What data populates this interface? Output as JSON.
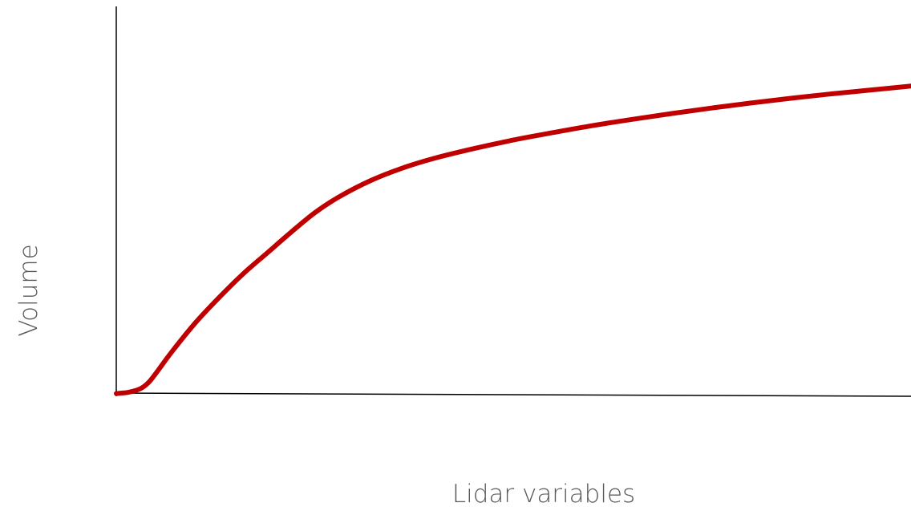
{
  "chart_data": {
    "type": "line",
    "title": "",
    "xlabel": "Lidar variables",
    "ylabel": "Volume",
    "xlim": [
      0,
      100
    ],
    "ylim": [
      0,
      100
    ],
    "grid": false,
    "legend": "none",
    "x_ticks_visible": false,
    "y_ticks_visible": false,
    "series": [
      {
        "color": "#C00000",
        "x": [
          0,
          1.5,
          3,
          4,
          5,
          7,
          10,
          13,
          16,
          19,
          22,
          25,
          28,
          32,
          36,
          40,
          45,
          50,
          55,
          60,
          65,
          70,
          75,
          80,
          85,
          90,
          95,
          100
        ],
        "y": [
          0.3,
          0.6,
          1.5,
          3.0,
          5.5,
          11.0,
          18.5,
          25.0,
          31.0,
          36.3,
          41.6,
          46.6,
          50.6,
          54.8,
          58.0,
          60.5,
          63.0,
          65.2,
          67.1,
          68.9,
          70.5,
          72.0,
          73.4,
          74.7,
          75.9,
          77.0,
          78.0,
          79.0
        ]
      }
    ]
  }
}
